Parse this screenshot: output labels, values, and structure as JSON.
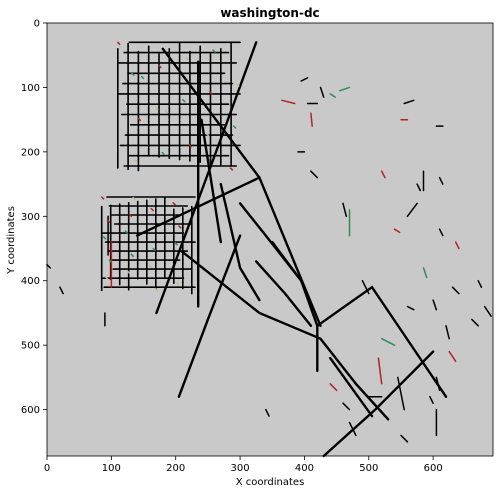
{
  "figure": {
    "title": "washington-dc",
    "xlabel": "X coordinates",
    "ylabel": "Y coordinates"
  },
  "chart_data": {
    "type": "map",
    "title": "washington-dc",
    "xlabel": "X coordinates",
    "ylabel": "Y coordinates",
    "xlim": [
      0,
      693
    ],
    "ylim": [
      672,
      0
    ],
    "xticks": [
      0,
      100,
      200,
      300,
      400,
      500,
      600
    ],
    "yticks": [
      0,
      100,
      200,
      300,
      400,
      500,
      600
    ],
    "background_color": "#c9c9c9",
    "road_color": "#000000",
    "accent_colors": [
      "#b22222",
      "#2e8b57",
      "#d2b48c"
    ],
    "roads": [
      {
        "name": "diagonal-ne",
        "points": [
          [
            170,
            450
          ],
          [
            270,
            180
          ],
          [
            325,
            30
          ]
        ]
      },
      {
        "name": "diagonal-main",
        "points": [
          [
            180,
            40
          ],
          [
            330,
            240
          ],
          [
            425,
            470
          ]
        ]
      },
      {
        "name": "diagonal-se",
        "points": [
          [
            210,
            355
          ],
          [
            330,
            450
          ],
          [
            425,
            490
          ],
          [
            480,
            560
          ],
          [
            530,
            615
          ]
        ]
      },
      {
        "name": "diagonal-sw",
        "points": [
          [
            140,
            330
          ],
          [
            330,
            240
          ]
        ]
      },
      {
        "name": "diagonal-lower",
        "points": [
          [
            205,
            580
          ],
          [
            250,
            460
          ],
          [
            300,
            330
          ]
        ]
      },
      {
        "name": "diagonal-south",
        "points": [
          [
            430,
            672
          ],
          [
            510,
            600
          ],
          [
            580,
            530
          ],
          [
            600,
            510
          ]
        ]
      },
      {
        "name": "diagonal-south2",
        "points": [
          [
            420,
            470
          ],
          [
            505,
            410
          ],
          [
            620,
            580
          ]
        ]
      },
      {
        "name": "curve-east",
        "points": [
          [
            300,
            280
          ],
          [
            340,
            330
          ],
          [
            395,
            400
          ],
          [
            420,
            470
          ],
          [
            420,
            540
          ]
        ]
      },
      {
        "name": "road-center",
        "points": [
          [
            235,
            60
          ],
          [
            235,
            440
          ]
        ]
      },
      {
        "name": "road-center2",
        "points": [
          [
            240,
            150
          ],
          [
            270,
            340
          ]
        ]
      },
      {
        "name": "road-south",
        "points": [
          [
            440,
            520
          ],
          [
            505,
            610
          ]
        ]
      },
      {
        "name": "road-mid",
        "points": [
          [
            270,
            250
          ],
          [
            300,
            380
          ],
          [
            330,
            430
          ]
        ]
      },
      {
        "name": "road-east1",
        "points": [
          [
            350,
            340
          ],
          [
            395,
            400
          ]
        ]
      },
      {
        "name": "road-east2",
        "points": [
          [
            325,
            370
          ],
          [
            370,
            420
          ],
          [
            410,
            470
          ]
        ]
      }
    ],
    "grid_blocks": [
      {
        "name": "nw-grid",
        "x": [
          110,
          300
        ],
        "y": [
          30,
          230
        ],
        "step": 16
      },
      {
        "name": "w-grid",
        "x": [
          85,
          230
        ],
        "y": [
          270,
          420
        ],
        "step": 14
      }
    ],
    "scattered_segments": [
      [
        [
          100,
          340
        ],
        [
          100,
          410
        ]
      ],
      [
        [
          95,
          300
        ],
        [
          95,
          360
        ]
      ],
      [
        [
          90,
          450
        ],
        [
          90,
          470
        ]
      ],
      [
        [
          20,
          410
        ],
        [
          25,
          420
        ]
      ],
      [
        [
          0,
          375
        ],
        [
          5,
          380
        ]
      ],
      [
        [
          365,
          120
        ],
        [
          385,
          125
        ]
      ],
      [
        [
          405,
          125
        ],
        [
          420,
          125
        ]
      ],
      [
        [
          455,
          105
        ],
        [
          470,
          100
        ]
      ],
      [
        [
          395,
          90
        ],
        [
          405,
          85
        ]
      ],
      [
        [
          555,
          125
        ],
        [
          570,
          120
        ]
      ],
      [
        [
          550,
          150
        ],
        [
          560,
          150
        ]
      ],
      [
        [
          560,
          300
        ],
        [
          575,
          280
        ]
      ],
      [
        [
          605,
          160
        ],
        [
          615,
          160
        ]
      ],
      [
        [
          425,
          100
        ],
        [
          430,
          115
        ]
      ],
      [
        [
          440,
          110
        ],
        [
          448,
          115
        ]
      ],
      [
        [
          410,
          140
        ],
        [
          412,
          160
        ]
      ],
      [
        [
          390,
          200
        ],
        [
          400,
          200
        ]
      ],
      [
        [
          410,
          230
        ],
        [
          420,
          240
        ]
      ],
      [
        [
          585,
          230
        ],
        [
          585,
          260
        ]
      ],
      [
        [
          610,
          320
        ],
        [
          615,
          330
        ]
      ],
      [
        [
          635,
          340
        ],
        [
          640,
          350
        ]
      ],
      [
        [
          585,
          380
        ],
        [
          590,
          395
        ]
      ],
      [
        [
          670,
          400
        ],
        [
          675,
          410
        ]
      ],
      [
        [
          680,
          440
        ],
        [
          690,
          455
        ]
      ],
      [
        [
          630,
          410
        ],
        [
          640,
          420
        ]
      ],
      [
        [
          520,
          230
        ],
        [
          525,
          240
        ]
      ],
      [
        [
          610,
          240
        ],
        [
          615,
          250
        ]
      ],
      [
        [
          575,
          250
        ],
        [
          580,
          260
        ]
      ],
      [
        [
          470,
          290
        ],
        [
          470,
          330
        ]
      ],
      [
        [
          460,
          280
        ],
        [
          465,
          300
        ]
      ],
      [
        [
          540,
          320
        ],
        [
          548,
          325
        ]
      ],
      [
        [
          620,
          470
        ],
        [
          625,
          490
        ]
      ],
      [
        [
          660,
          460
        ],
        [
          670,
          470
        ]
      ],
      [
        [
          605,
          550
        ],
        [
          610,
          570
        ]
      ],
      [
        [
          605,
          600
        ],
        [
          605,
          640
        ]
      ],
      [
        [
          515,
          520
        ],
        [
          520,
          560
        ]
      ],
      [
        [
          545,
          550
        ],
        [
          555,
          600
        ]
      ],
      [
        [
          470,
          620
        ],
        [
          480,
          640
        ]
      ],
      [
        [
          500,
          580
        ],
        [
          520,
          580
        ]
      ],
      [
        [
          460,
          590
        ],
        [
          470,
          600
        ]
      ],
      [
        [
          440,
          560
        ],
        [
          450,
          570
        ]
      ],
      [
        [
          490,
          400
        ],
        [
          500,
          420
        ]
      ],
      [
        [
          520,
          490
        ],
        [
          540,
          500
        ]
      ],
      [
        [
          560,
          440
        ],
        [
          570,
          445
        ]
      ],
      [
        [
          600,
          430
        ],
        [
          605,
          445
        ]
      ],
      [
        [
          625,
          510
        ],
        [
          635,
          525
        ]
      ],
      [
        [
          340,
          600
        ],
        [
          345,
          610
        ]
      ],
      [
        [
          550,
          640
        ],
        [
          560,
          650
        ]
      ],
      [
        [
          595,
          580
        ],
        [
          600,
          590
        ]
      ]
    ]
  }
}
